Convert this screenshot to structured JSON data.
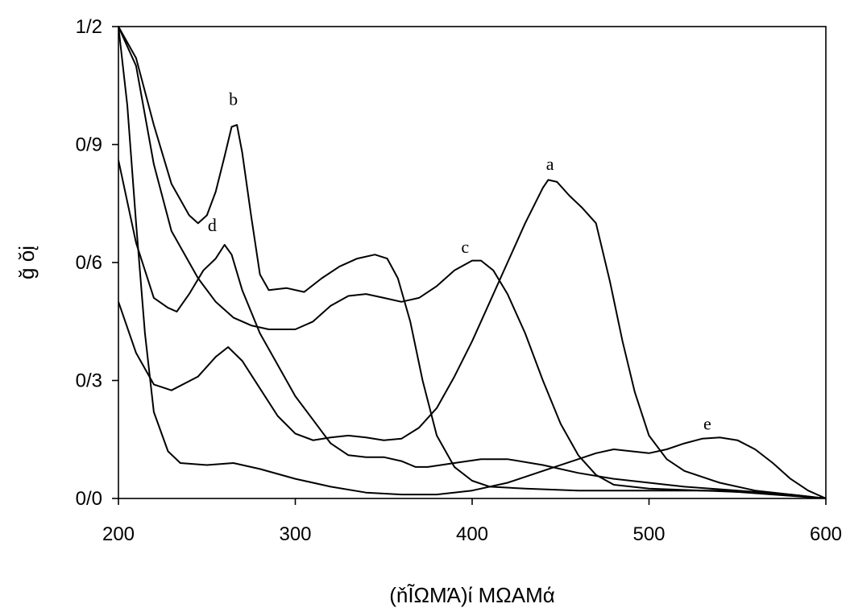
{
  "chart_data": {
    "type": "line",
    "xlabel": "(ňĨΩΜΆ)ί ΜΩΑΜά",
    "ylabel": "ğ ŏį",
    "xlim": [
      200,
      600
    ],
    "ylim": [
      0,
      1.2
    ],
    "x_ticks": [
      {
        "value": 200,
        "label": "200"
      },
      {
        "value": 300,
        "label": "300"
      },
      {
        "value": 400,
        "label": "400"
      },
      {
        "value": 500,
        "label": "500"
      },
      {
        "value": 600,
        "label": "600"
      }
    ],
    "y_ticks": [
      {
        "value": 0.0,
        "label": "0/0"
      },
      {
        "value": 0.3,
        "label": "0/3"
      },
      {
        "value": 0.6,
        "label": "0/6"
      },
      {
        "value": 0.9,
        "label": "0/9"
      },
      {
        "value": 1.2,
        "label": "1/2"
      }
    ],
    "grid": false,
    "series": [
      {
        "name": "a",
        "label_at": [
          444,
          0.835
        ],
        "points": [
          [
            200,
            0.5
          ],
          [
            210,
            0.37
          ],
          [
            220,
            0.29
          ],
          [
            230,
            0.275
          ],
          [
            245,
            0.31
          ],
          [
            255,
            0.36
          ],
          [
            262,
            0.385
          ],
          [
            270,
            0.35
          ],
          [
            280,
            0.28
          ],
          [
            290,
            0.21
          ],
          [
            300,
            0.165
          ],
          [
            310,
            0.148
          ],
          [
            320,
            0.155
          ],
          [
            330,
            0.16
          ],
          [
            340,
            0.155
          ],
          [
            350,
            0.148
          ],
          [
            360,
            0.152
          ],
          [
            370,
            0.18
          ],
          [
            380,
            0.23
          ],
          [
            390,
            0.31
          ],
          [
            400,
            0.4
          ],
          [
            410,
            0.5
          ],
          [
            420,
            0.6
          ],
          [
            430,
            0.7
          ],
          [
            440,
            0.79
          ],
          [
            443,
            0.81
          ],
          [
            448,
            0.805
          ],
          [
            455,
            0.77
          ],
          [
            462,
            0.74
          ],
          [
            470,
            0.7
          ],
          [
            478,
            0.55
          ],
          [
            485,
            0.4
          ],
          [
            492,
            0.27
          ],
          [
            500,
            0.16
          ],
          [
            510,
            0.1
          ],
          [
            520,
            0.07
          ],
          [
            540,
            0.04
          ],
          [
            560,
            0.02
          ],
          [
            580,
            0.01
          ],
          [
            600,
            0.0
          ]
        ]
      },
      {
        "name": "b",
        "label_at": [
          265,
          1.0
        ],
        "points": [
          [
            200,
            1.2
          ],
          [
            210,
            1.12
          ],
          [
            220,
            0.95
          ],
          [
            230,
            0.8
          ],
          [
            240,
            0.72
          ],
          [
            245,
            0.7
          ],
          [
            250,
            0.72
          ],
          [
            255,
            0.78
          ],
          [
            260,
            0.87
          ],
          [
            264,
            0.945
          ],
          [
            267,
            0.95
          ],
          [
            270,
            0.88
          ],
          [
            275,
            0.72
          ],
          [
            280,
            0.57
          ],
          [
            285,
            0.53
          ],
          [
            295,
            0.535
          ],
          [
            305,
            0.525
          ],
          [
            315,
            0.56
          ],
          [
            325,
            0.59
          ],
          [
            335,
            0.61
          ],
          [
            345,
            0.62
          ],
          [
            352,
            0.61
          ],
          [
            358,
            0.56
          ],
          [
            365,
            0.45
          ],
          [
            372,
            0.3
          ],
          [
            380,
            0.16
          ],
          [
            390,
            0.08
          ],
          [
            400,
            0.045
          ],
          [
            410,
            0.03
          ],
          [
            430,
            0.025
          ],
          [
            460,
            0.02
          ],
          [
            500,
            0.02
          ],
          [
            540,
            0.02
          ],
          [
            570,
            0.01
          ],
          [
            600,
            0.0
          ]
        ]
      },
      {
        "name": "c",
        "label_at": [
          396,
          0.625
        ],
        "points": [
          [
            200,
            1.2
          ],
          [
            210,
            1.1
          ],
          [
            220,
            0.85
          ],
          [
            230,
            0.68
          ],
          [
            245,
            0.56
          ],
          [
            255,
            0.5
          ],
          [
            265,
            0.46
          ],
          [
            275,
            0.44
          ],
          [
            285,
            0.43
          ],
          [
            300,
            0.43
          ],
          [
            310,
            0.45
          ],
          [
            320,
            0.49
          ],
          [
            330,
            0.515
          ],
          [
            340,
            0.52
          ],
          [
            350,
            0.51
          ],
          [
            360,
            0.5
          ],
          [
            370,
            0.51
          ],
          [
            380,
            0.54
          ],
          [
            390,
            0.58
          ],
          [
            400,
            0.605
          ],
          [
            405,
            0.605
          ],
          [
            412,
            0.58
          ],
          [
            420,
            0.52
          ],
          [
            430,
            0.42
          ],
          [
            440,
            0.3
          ],
          [
            450,
            0.19
          ],
          [
            460,
            0.11
          ],
          [
            470,
            0.06
          ],
          [
            480,
            0.035
          ],
          [
            500,
            0.025
          ],
          [
            530,
            0.02
          ],
          [
            560,
            0.015
          ],
          [
            600,
            0.0
          ]
        ]
      },
      {
        "name": "d",
        "label_at": [
          253,
          0.68
        ],
        "points": [
          [
            200,
            0.86
          ],
          [
            210,
            0.65
          ],
          [
            220,
            0.51
          ],
          [
            228,
            0.485
          ],
          [
            233,
            0.475
          ],
          [
            240,
            0.52
          ],
          [
            248,
            0.58
          ],
          [
            255,
            0.61
          ],
          [
            260,
            0.645
          ],
          [
            264,
            0.62
          ],
          [
            270,
            0.53
          ],
          [
            280,
            0.42
          ],
          [
            290,
            0.34
          ],
          [
            300,
            0.26
          ],
          [
            310,
            0.2
          ],
          [
            320,
            0.14
          ],
          [
            330,
            0.11
          ],
          [
            340,
            0.105
          ],
          [
            350,
            0.105
          ],
          [
            360,
            0.095
          ],
          [
            368,
            0.08
          ],
          [
            375,
            0.08
          ],
          [
            390,
            0.09
          ],
          [
            405,
            0.1
          ],
          [
            420,
            0.1
          ],
          [
            440,
            0.085
          ],
          [
            460,
            0.065
          ],
          [
            480,
            0.05
          ],
          [
            500,
            0.04
          ],
          [
            520,
            0.03
          ],
          [
            550,
            0.02
          ],
          [
            580,
            0.01
          ],
          [
            600,
            0.0
          ]
        ]
      },
      {
        "name": "e",
        "label_at": [
          533,
          0.175
        ],
        "points": [
          [
            200,
            1.2
          ],
          [
            205,
            1.0
          ],
          [
            210,
            0.7
          ],
          [
            215,
            0.42
          ],
          [
            220,
            0.22
          ],
          [
            228,
            0.12
          ],
          [
            235,
            0.09
          ],
          [
            250,
            0.085
          ],
          [
            265,
            0.09
          ],
          [
            280,
            0.075
          ],
          [
            300,
            0.05
          ],
          [
            320,
            0.03
          ],
          [
            340,
            0.015
          ],
          [
            360,
            0.01
          ],
          [
            380,
            0.01
          ],
          [
            400,
            0.02
          ],
          [
            420,
            0.04
          ],
          [
            440,
            0.07
          ],
          [
            460,
            0.1
          ],
          [
            470,
            0.115
          ],
          [
            480,
            0.125
          ],
          [
            490,
            0.12
          ],
          [
            500,
            0.115
          ],
          [
            510,
            0.125
          ],
          [
            520,
            0.14
          ],
          [
            530,
            0.152
          ],
          [
            540,
            0.155
          ],
          [
            550,
            0.148
          ],
          [
            560,
            0.125
          ],
          [
            570,
            0.09
          ],
          [
            580,
            0.05
          ],
          [
            590,
            0.02
          ],
          [
            600,
            0.0
          ]
        ]
      }
    ]
  }
}
